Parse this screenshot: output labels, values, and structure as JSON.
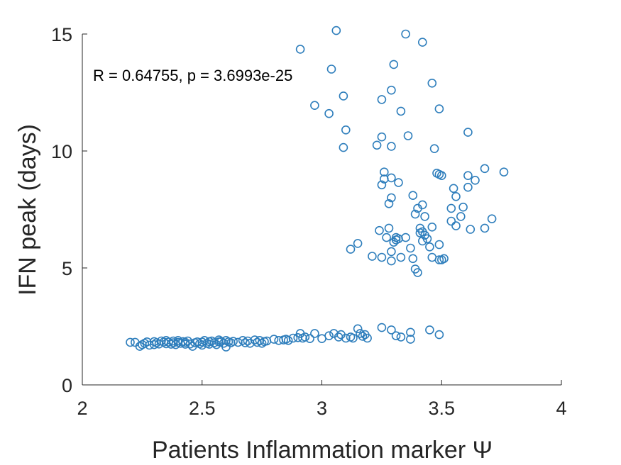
{
  "chart_data": {
    "type": "scatter",
    "title": "",
    "xlabel": "Patients Inflammation marker Ψ",
    "ylabel": "IFN peak (days)",
    "xlim": [
      2,
      4
    ],
    "ylim": [
      0,
      15
    ],
    "xticks": [
      2,
      2.5,
      3,
      3.5,
      4
    ],
    "xtick_labels": [
      "2",
      "2.5",
      "3",
      "3.5",
      "4"
    ],
    "yticks": [
      0,
      5,
      10,
      15
    ],
    "ytick_labels": [
      "0",
      "5",
      "10",
      "15"
    ],
    "grid": false,
    "marker": "circle-open",
    "color": "#2e7ebc",
    "annotation": "R = 0.64755, p = 3.6993e-25",
    "x": [
      2.2,
      2.22,
      2.24,
      2.25,
      2.26,
      2.27,
      2.28,
      2.3,
      2.3,
      2.31,
      2.32,
      2.33,
      2.34,
      2.35,
      2.35,
      2.36,
      2.37,
      2.38,
      2.38,
      2.39,
      2.4,
      2.4,
      2.41,
      2.42,
      2.43,
      2.43,
      2.44,
      2.45,
      2.46,
      2.47,
      2.48,
      2.49,
      2.5,
      2.5,
      2.51,
      2.52,
      2.53,
      2.53,
      2.54,
      2.55,
      2.56,
      2.57,
      2.57,
      2.58,
      2.59,
      2.6,
      2.6,
      2.61,
      2.62,
      2.63,
      2.65,
      2.67,
      2.68,
      2.69,
      2.7,
      2.72,
      2.73,
      2.74,
      2.75,
      2.76,
      2.77,
      2.8,
      2.82,
      2.84,
      2.85,
      2.86,
      2.88,
      2.9,
      2.91,
      2.92,
      2.93,
      2.95,
      2.97,
      3.0,
      3.03,
      3.05,
      3.07,
      3.08,
      3.1,
      3.12,
      3.13,
      3.15,
      3.16,
      3.17,
      3.18,
      3.19,
      3.25,
      3.29,
      3.31,
      3.33,
      3.37,
      3.37,
      3.45,
      3.49,
      2.91,
      3.06,
      3.35,
      3.42,
      3.04,
      3.3,
      3.46,
      2.97,
      3.09,
      3.29,
      3.03,
      3.25,
      3.33,
      3.49,
      3.1,
      3.61,
      3.25,
      3.36,
      3.23,
      3.29,
      3.47,
      3.09,
      3.26,
      3.49,
      3.68,
      3.26,
      3.48,
      3.5,
      3.76,
      3.61,
      3.29,
      3.32,
      3.64,
      3.25,
      3.29,
      3.38,
      3.56,
      3.55,
      3.61,
      3.42,
      3.59,
      3.28,
      3.4,
      3.54,
      3.41,
      3.39,
      3.43,
      3.58,
      3.71,
      3.28,
      3.54,
      3.46,
      3.56,
      3.62,
      3.24,
      3.68,
      3.31,
      3.41,
      3.35,
      3.42,
      3.15,
      3.43,
      3.31,
      3.32,
      3.42,
      3.44,
      3.49,
      3.3,
      3.45,
      3.27,
      3.12,
      3.29,
      3.46,
      3.33,
      3.21,
      3.25,
      3.29,
      3.5,
      3.38,
      3.39,
      3.4,
      3.49,
      3.51,
      3.37
    ],
    "y": [
      1.82,
      1.82,
      1.65,
      1.72,
      1.78,
      1.84,
      1.7,
      1.72,
      1.85,
      1.8,
      1.75,
      1.88,
      1.83,
      1.76,
      1.9,
      1.83,
      1.74,
      1.8,
      1.88,
      1.72,
      1.82,
      1.9,
      1.78,
      1.85,
      1.74,
      1.82,
      1.88,
      1.75,
      1.65,
      1.8,
      1.84,
      1.76,
      1.83,
      1.7,
      1.9,
      1.78,
      1.74,
      1.85,
      1.88,
      1.8,
      1.72,
      1.84,
      1.92,
      1.86,
      1.78,
      1.9,
      1.62,
      1.84,
      1.8,
      1.86,
      1.82,
      1.9,
      1.8,
      1.88,
      1.78,
      1.92,
      1.82,
      1.9,
      1.78,
      1.85,
      1.88,
      1.95,
      1.9,
      1.92,
      1.95,
      1.9,
      2.0,
      2.02,
      2.2,
      2.0,
      2.05,
      1.98,
      2.2,
      1.98,
      2.1,
      2.2,
      2.05,
      2.15,
      2.0,
      2.05,
      2.0,
      2.4,
      2.2,
      2.08,
      2.15,
      2.0,
      2.45,
      2.35,
      2.1,
      2.05,
      2.25,
      1.95,
      2.35,
      2.15,
      14.35,
      15.15,
      15.0,
      14.65,
      13.5,
      13.7,
      12.9,
      11.95,
      12.35,
      12.6,
      11.6,
      12.2,
      11.7,
      11.8,
      10.9,
      10.8,
      10.6,
      10.65,
      10.25,
      10.2,
      10.1,
      10.15,
      9.1,
      9.0,
      9.25,
      8.8,
      9.05,
      8.95,
      9.1,
      8.95,
      8.85,
      8.65,
      8.75,
      8.55,
      8.0,
      8.1,
      8.05,
      8.4,
      8.45,
      7.7,
      7.6,
      7.75,
      7.55,
      7.55,
      6.7,
      7.3,
      7.2,
      7.2,
      7.1,
      6.7,
      7.0,
      6.75,
      6.8,
      6.65,
      6.6,
      6.7,
      6.3,
      6.5,
      6.3,
      6.55,
      6.05,
      6.4,
      6.2,
      6.25,
      6.15,
      6.25,
      6.0,
      6.1,
      5.9,
      6.3,
      5.8,
      5.7,
      5.45,
      5.45,
      5.5,
      5.45,
      5.3,
      5.35,
      5.4,
      4.95,
      4.8,
      5.35,
      5.4,
      5.85
    ]
  }
}
